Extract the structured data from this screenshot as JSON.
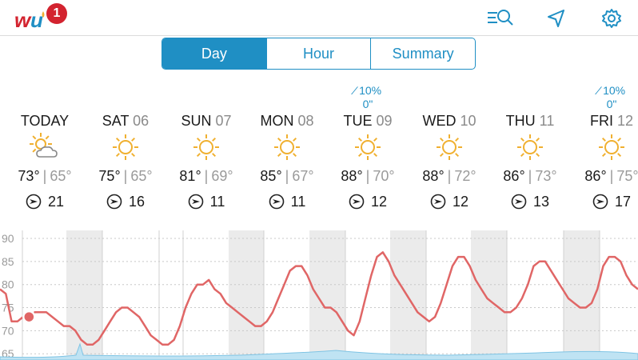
{
  "header": {
    "badge_count": "1",
    "icons": [
      "search-list-icon",
      "location-arrow-icon",
      "gear-icon"
    ]
  },
  "tabs": [
    {
      "label": "Day",
      "active": true
    },
    {
      "label": "Hour",
      "active": false
    },
    {
      "label": "Summary",
      "active": false
    }
  ],
  "days": [
    {
      "name": "TODAY",
      "date": "",
      "precip_pct": "",
      "precip_amt": "",
      "icon": "partly-cloudy-icon",
      "high": "73°",
      "low": "65°",
      "wind": "21"
    },
    {
      "name": "SAT",
      "date": "06",
      "precip_pct": "",
      "precip_amt": "",
      "icon": "sun-icon",
      "high": "75°",
      "low": "65°",
      "wind": "16"
    },
    {
      "name": "SUN",
      "date": "07",
      "precip_pct": "",
      "precip_amt": "",
      "icon": "sun-icon",
      "high": "81°",
      "low": "69°",
      "wind": "11"
    },
    {
      "name": "MON",
      "date": "08",
      "precip_pct": "",
      "precip_amt": "",
      "icon": "sun-icon",
      "high": "85°",
      "low": "67°",
      "wind": "11"
    },
    {
      "name": "TUE",
      "date": "09",
      "precip_pct": "10%",
      "precip_amt": "0\"",
      "icon": "sun-icon",
      "high": "88°",
      "low": "70°",
      "wind": "12"
    },
    {
      "name": "WED",
      "date": "10",
      "precip_pct": "",
      "precip_amt": "",
      "icon": "sun-icon",
      "high": "88°",
      "low": "72°",
      "wind": "12"
    },
    {
      "name": "THU",
      "date": "11",
      "precip_pct": "",
      "precip_amt": "",
      "icon": "sun-icon",
      "high": "86°",
      "low": "73°",
      "wind": "13"
    },
    {
      "name": "FRI",
      "date": "12",
      "precip_pct": "10%",
      "precip_amt": "0\"",
      "icon": "sun-icon",
      "high": "86°",
      "low": "75°",
      "wind": "17"
    }
  ],
  "colors": {
    "accent": "#1f8fc4",
    "temp_line": "#e06666",
    "sun": "#f0b030"
  },
  "chart_data": {
    "type": "line",
    "yticks": [
      65,
      70,
      75,
      80,
      85,
      90
    ],
    "ylim": [
      64,
      90
    ],
    "grid": true,
    "series": [
      {
        "values": [
          79,
          78,
          72,
          72,
          73,
          73,
          74,
          74,
          74,
          73,
          72,
          71,
          71,
          70,
          68,
          67,
          67,
          68,
          70,
          72,
          74,
          75,
          75,
          74,
          73,
          71,
          69,
          68,
          67,
          67,
          68,
          71,
          75,
          78,
          80,
          80,
          81,
          79,
          78,
          76,
          75,
          74,
          73,
          72,
          71,
          71,
          72,
          74,
          77,
          80,
          83,
          84,
          84,
          82,
          79,
          77,
          75,
          75,
          74,
          72,
          70,
          69,
          72,
          77,
          82,
          86,
          87,
          85,
          82,
          80,
          78,
          76,
          74,
          73,
          72,
          73,
          76,
          80,
          84,
          86,
          86,
          84,
          81,
          79,
          77,
          76,
          75,
          74,
          74,
          75,
          77,
          80,
          84,
          85,
          85,
          83,
          81,
          79,
          77,
          76,
          75,
          75,
          76,
          79,
          84,
          86,
          86,
          85,
          82,
          80,
          79
        ]
      }
    ]
  }
}
